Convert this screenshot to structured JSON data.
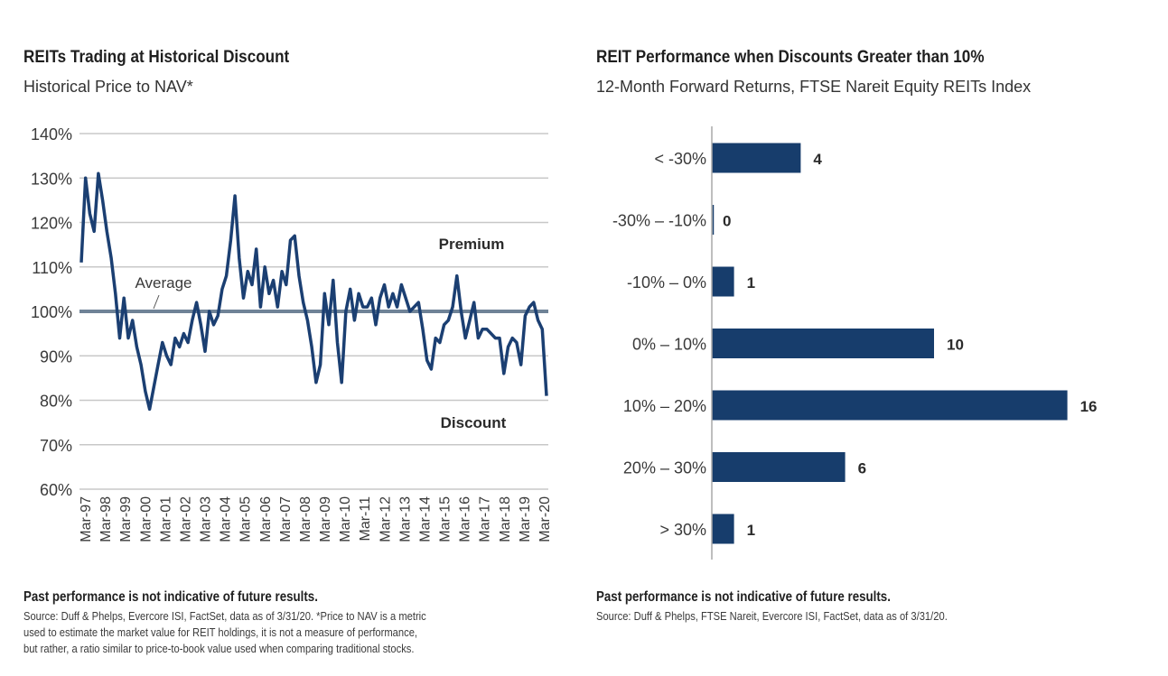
{
  "left": {
    "title": "REITs Trading at Historical Discount",
    "subtitle": "Historical Price to NAV*",
    "footnote_bold": "Past performance is not indicative of future results.",
    "footnote_lines": [
      "Source: Duff & Phelps, Evercore ISI, FactSet, data as of 3/31/20. *Price to NAV is a metric",
      "used to estimate the market value for REIT holdings, it is not a measure of performance,",
      "but rather, a ratio similar to price-to-book value used when comparing traditional stocks."
    ]
  },
  "right": {
    "title": "REIT Performance when Discounts Greater than 10%",
    "subtitle": "12-Month Forward Returns, FTSE Nareit Equity REITs Index",
    "footnote_bold": "Past performance is not indicative of future results.",
    "footnote_lines": [
      "Source: Duff & Phelps, FTSE Nareit, Evercore ISI, FactSet, data as of 3/31/20."
    ]
  },
  "colors": {
    "series": "#1b3f72",
    "average": "#6f8397",
    "grid": "#c8c8c8",
    "bar": "#173d6c",
    "text": "#333333"
  },
  "chart_data": [
    {
      "type": "line",
      "title": "REITs Trading at Historical Discount",
      "subtitle": "Historical Price to NAV*",
      "xlabel": "",
      "ylabel": "",
      "ylim": [
        60,
        140
      ],
      "yticks": [
        "60%",
        "70%",
        "80%",
        "90%",
        "100%",
        "110%",
        "120%",
        "130%",
        "140%"
      ],
      "ytick_values": [
        60,
        70,
        80,
        90,
        100,
        110,
        120,
        130,
        140
      ],
      "xtick_labels": [
        "Mar-97",
        "Mar-98",
        "Mar-99",
        "Mar-00",
        "Mar-01",
        "Mar-02",
        "Mar-03",
        "Mar-04",
        "Mar-05",
        "Mar-06",
        "Mar-07",
        "Mar-08",
        "Mar-09",
        "Mar-10",
        "Mar-11",
        "Mar-12",
        "Mar-13",
        "Mar-14",
        "Mar-15",
        "Mar-16",
        "Mar-17",
        "Mar-18",
        "Mar-19",
        "Mar-20"
      ],
      "grid": true,
      "average": 100,
      "annotations": [
        "Average",
        "Premium",
        "Discount"
      ],
      "series": [
        {
          "name": "Price to NAV (%)",
          "x_start": "Mar-97",
          "x_step": "quarter",
          "values": [
            111,
            130,
            122,
            118,
            131,
            125,
            118,
            112,
            104,
            94,
            103,
            94,
            98,
            92,
            88,
            82,
            78,
            83,
            88,
            93,
            90,
            88,
            94,
            92,
            95,
            93,
            98,
            102,
            97,
            91,
            100,
            97,
            99,
            105,
            108,
            116,
            126,
            112,
            103,
            109,
            106,
            114,
            101,
            110,
            104,
            107,
            101,
            109,
            106,
            116,
            117,
            108,
            102,
            98,
            92,
            84,
            88,
            104,
            97,
            107,
            93,
            84,
            100,
            105,
            98,
            104,
            101,
            101,
            103,
            97,
            103,
            106,
            101,
            104,
            101,
            106,
            103,
            100,
            101,
            102,
            96,
            89,
            87,
            94,
            93,
            97,
            98,
            101,
            108,
            100,
            94,
            98,
            102,
            94,
            96,
            96,
            95,
            94,
            94,
            86,
            92,
            94,
            93,
            88,
            99,
            101,
            102,
            98,
            96,
            81
          ]
        }
      ]
    },
    {
      "type": "bar",
      "orientation": "horizontal",
      "title": "REIT Performance when Discounts Greater than 10%",
      "subtitle": "12-Month Forward Returns, FTSE Nareit Equity REITs Index",
      "categories": [
        "< -30%",
        "-30% – -10%",
        "-10% – 0%",
        "0% – 10%",
        "10% – 20%",
        "20% – 30%",
        "> 30%"
      ],
      "values": [
        4,
        0,
        1,
        10,
        16,
        6,
        1
      ],
      "data_labels": [
        "4",
        "0",
        "1",
        "10",
        "16",
        "6",
        "1"
      ],
      "xlabel": "",
      "ylabel": "",
      "xlim": [
        0,
        16
      ],
      "grid": false
    }
  ],
  "labels": {
    "average": "Average",
    "premium": "Premium",
    "discount": "Discount"
  }
}
